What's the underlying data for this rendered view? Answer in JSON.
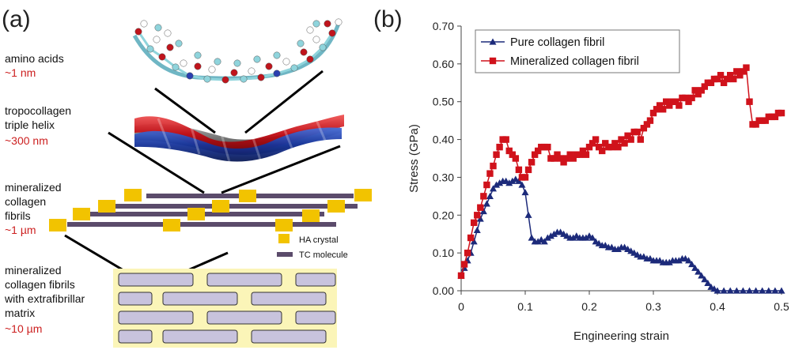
{
  "panel_a": {
    "tag": "(a)",
    "levels": [
      {
        "name_lines": [
          "amino acids"
        ],
        "scale": "~1 nm"
      },
      {
        "name_lines": [
          "tropocollagen",
          "triple helix"
        ],
        "scale": "~300 nm"
      },
      {
        "name_lines": [
          "mineralized",
          "collagen",
          "fibrils"
        ],
        "scale": "~1 µm"
      },
      {
        "name_lines": [
          "mineralized",
          "collagen fibrils",
          "with extrafibrillar",
          "matrix"
        ],
        "scale": "~10 µm"
      }
    ],
    "legend": {
      "ha": "HA crystal",
      "tc": "TC molecule"
    },
    "colors": {
      "scale_text": "#cc1f1f",
      "ha_crystal": "#f2c300",
      "tc_molecule": "#5b4b6b",
      "matrix_bg": "#fbf5b8",
      "fibril_fill": "#c8c3dd"
    }
  },
  "panel_b": {
    "tag": "(b)"
  },
  "chart_data": {
    "type": "line",
    "xlabel": "Engineering strain",
    "ylabel": "Stress (GPa)",
    "xlim": [
      0,
      0.5
    ],
    "ylim": [
      0,
      0.7
    ],
    "xticks": [
      "0",
      "0.1",
      "0.2",
      "0.3",
      "0.4",
      "0.5"
    ],
    "yticks": [
      "0.00",
      "0.10",
      "0.20",
      "0.30",
      "0.40",
      "0.50",
      "0.60",
      "0.70"
    ],
    "grid": false,
    "legend_position": "top-left",
    "series": [
      {
        "name": "Pure collagen fibril",
        "color": "#1c2a7a",
        "marker": "triangle",
        "x": [
          0,
          0.005,
          0.01,
          0.015,
          0.02,
          0.025,
          0.03,
          0.035,
          0.04,
          0.045,
          0.05,
          0.055,
          0.06,
          0.065,
          0.07,
          0.075,
          0.08,
          0.085,
          0.09,
          0.095,
          0.1,
          0.105,
          0.11,
          0.115,
          0.12,
          0.125,
          0.13,
          0.135,
          0.14,
          0.145,
          0.15,
          0.155,
          0.16,
          0.165,
          0.17,
          0.175,
          0.18,
          0.185,
          0.19,
          0.195,
          0.2,
          0.205,
          0.21,
          0.215,
          0.22,
          0.225,
          0.23,
          0.235,
          0.24,
          0.245,
          0.25,
          0.255,
          0.26,
          0.265,
          0.27,
          0.275,
          0.28,
          0.285,
          0.29,
          0.295,
          0.3,
          0.305,
          0.31,
          0.315,
          0.32,
          0.325,
          0.33,
          0.335,
          0.34,
          0.345,
          0.35,
          0.355,
          0.36,
          0.365,
          0.37,
          0.375,
          0.38,
          0.385,
          0.39,
          0.395,
          0.4,
          0.41,
          0.42,
          0.43,
          0.44,
          0.45,
          0.46,
          0.47,
          0.48,
          0.49,
          0.5
        ],
        "y": [
          0.04,
          0.06,
          0.08,
          0.1,
          0.13,
          0.16,
          0.19,
          0.21,
          0.23,
          0.25,
          0.27,
          0.28,
          0.285,
          0.29,
          0.29,
          0.285,
          0.29,
          0.295,
          0.29,
          0.28,
          0.26,
          0.2,
          0.14,
          0.13,
          0.13,
          0.135,
          0.13,
          0.14,
          0.145,
          0.15,
          0.155,
          0.155,
          0.15,
          0.145,
          0.14,
          0.14,
          0.145,
          0.14,
          0.14,
          0.14,
          0.145,
          0.14,
          0.13,
          0.125,
          0.12,
          0.12,
          0.115,
          0.115,
          0.11,
          0.11,
          0.115,
          0.115,
          0.11,
          0.105,
          0.1,
          0.095,
          0.09,
          0.09,
          0.085,
          0.085,
          0.08,
          0.08,
          0.08,
          0.075,
          0.075,
          0.075,
          0.08,
          0.08,
          0.08,
          0.085,
          0.085,
          0.08,
          0.07,
          0.06,
          0.05,
          0.04,
          0.03,
          0.02,
          0.01,
          0.005,
          0.0,
          0.0,
          0.0,
          0.0,
          0.0,
          0.0,
          0.0,
          0.0,
          0.0,
          0.0,
          0.0
        ]
      },
      {
        "name": "Mineralized collagen fibril",
        "color": "#d0121b",
        "marker": "square",
        "x": [
          0,
          0.005,
          0.01,
          0.015,
          0.02,
          0.025,
          0.03,
          0.035,
          0.04,
          0.045,
          0.05,
          0.055,
          0.06,
          0.065,
          0.07,
          0.075,
          0.08,
          0.085,
          0.09,
          0.095,
          0.1,
          0.105,
          0.11,
          0.115,
          0.12,
          0.125,
          0.13,
          0.135,
          0.14,
          0.145,
          0.15,
          0.155,
          0.16,
          0.165,
          0.17,
          0.175,
          0.18,
          0.185,
          0.19,
          0.195,
          0.2,
          0.205,
          0.21,
          0.215,
          0.22,
          0.225,
          0.23,
          0.235,
          0.24,
          0.245,
          0.25,
          0.255,
          0.26,
          0.265,
          0.27,
          0.275,
          0.28,
          0.285,
          0.29,
          0.295,
          0.3,
          0.305,
          0.31,
          0.315,
          0.32,
          0.325,
          0.33,
          0.335,
          0.34,
          0.345,
          0.35,
          0.355,
          0.36,
          0.365,
          0.37,
          0.375,
          0.38,
          0.385,
          0.39,
          0.395,
          0.4,
          0.405,
          0.41,
          0.415,
          0.42,
          0.425,
          0.43,
          0.435,
          0.44,
          0.445,
          0.45,
          0.455,
          0.46,
          0.465,
          0.47,
          0.475,
          0.48,
          0.485,
          0.49,
          0.495,
          0.5
        ],
        "y": [
          0.04,
          0.07,
          0.1,
          0.14,
          0.18,
          0.2,
          0.22,
          0.25,
          0.28,
          0.31,
          0.33,
          0.36,
          0.38,
          0.4,
          0.4,
          0.37,
          0.36,
          0.35,
          0.32,
          0.3,
          0.3,
          0.32,
          0.34,
          0.36,
          0.37,
          0.38,
          0.38,
          0.38,
          0.35,
          0.35,
          0.36,
          0.35,
          0.34,
          0.35,
          0.36,
          0.35,
          0.36,
          0.36,
          0.37,
          0.36,
          0.38,
          0.39,
          0.4,
          0.38,
          0.37,
          0.39,
          0.38,
          0.38,
          0.39,
          0.38,
          0.4,
          0.39,
          0.41,
          0.4,
          0.42,
          0.42,
          0.4,
          0.43,
          0.44,
          0.45,
          0.47,
          0.48,
          0.49,
          0.48,
          0.5,
          0.49,
          0.5,
          0.5,
          0.49,
          0.51,
          0.51,
          0.5,
          0.51,
          0.53,
          0.52,
          0.53,
          0.54,
          0.55,
          0.55,
          0.56,
          0.56,
          0.57,
          0.55,
          0.56,
          0.57,
          0.56,
          0.58,
          0.57,
          0.58,
          0.59,
          0.5,
          0.44,
          0.44,
          0.45,
          0.45,
          0.45,
          0.46,
          0.46,
          0.46,
          0.47,
          0.47
        ]
      }
    ]
  }
}
